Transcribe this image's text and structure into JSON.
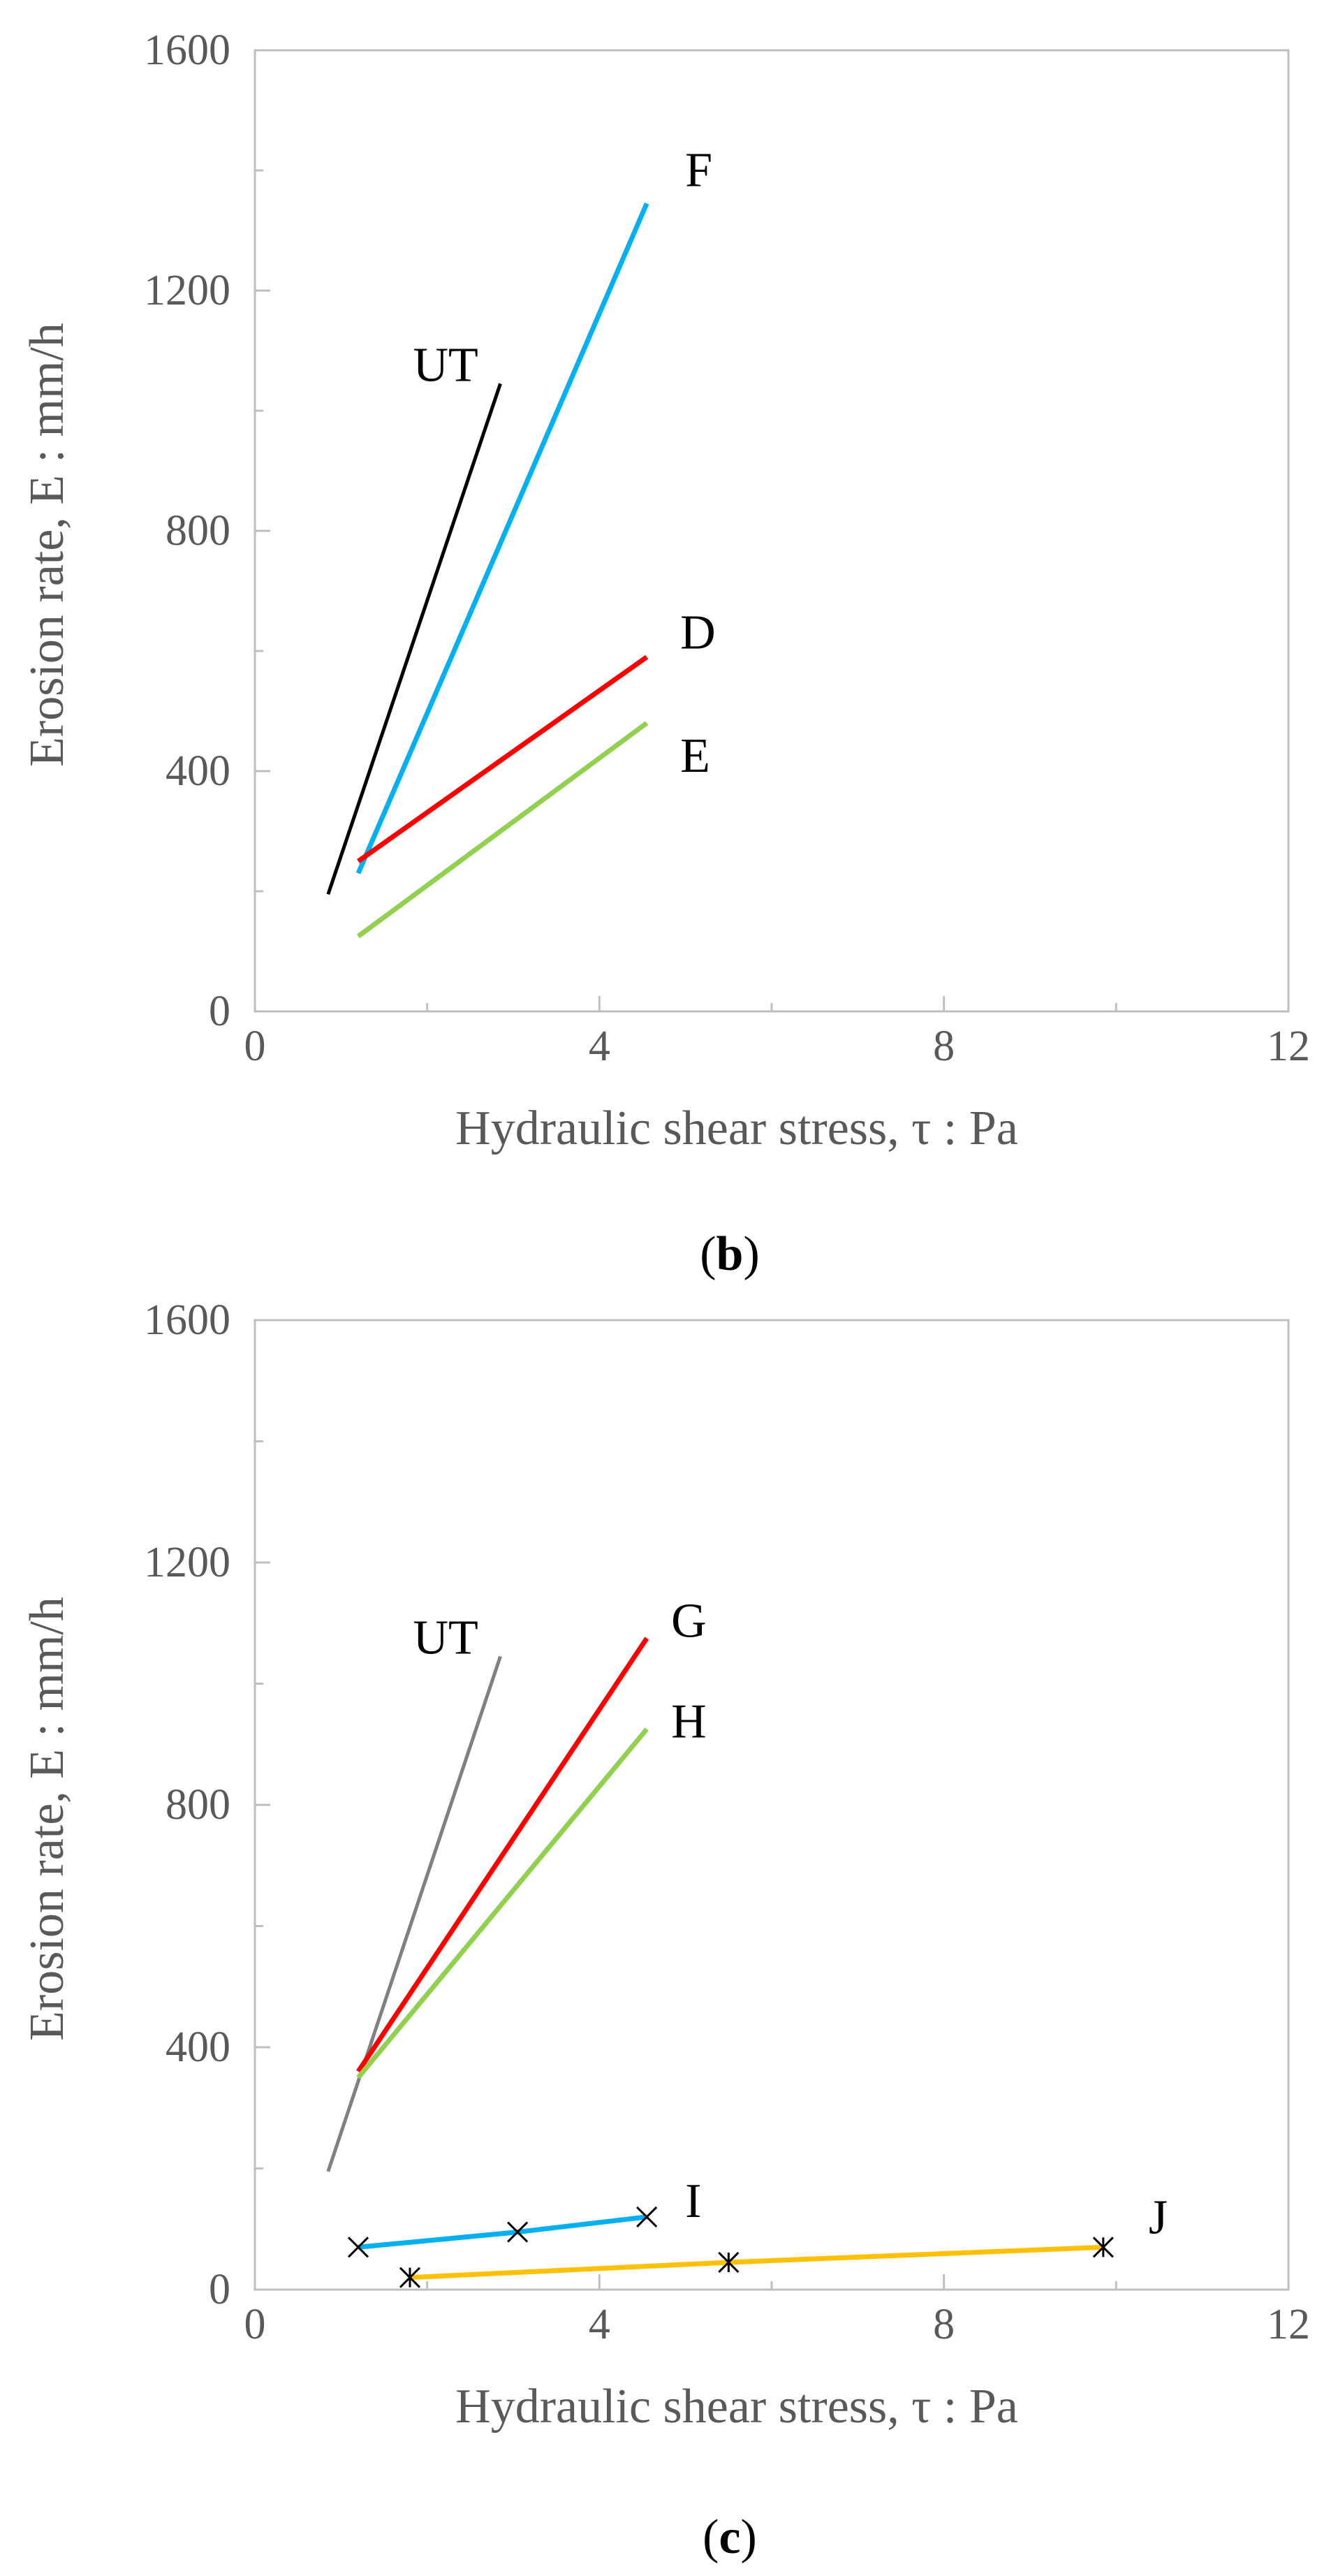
{
  "chart_data": [
    {
      "type": "line",
      "panel_label": "b",
      "xlabel": "Hydraulic shear stress, τ : Pa",
      "ylabel": "Erosion rate, E : mm/h",
      "xlim": [
        0,
        12
      ],
      "ylim": [
        0,
        1600
      ],
      "xticks": [
        0,
        4,
        8,
        12
      ],
      "yticks": [
        0,
        400,
        800,
        1200,
        1600
      ],
      "x_minor_step": 2,
      "y_minor_step": 200,
      "grid": false,
      "series": [
        {
          "name": "UT",
          "color": "#000000",
          "x": [
            0.85,
            2.85
          ],
          "y": [
            195,
            1045
          ],
          "markers": false
        },
        {
          "name": "F",
          "color": "#00b0f0",
          "x": [
            1.2,
            4.55
          ],
          "y": [
            230,
            1345
          ],
          "markers": false
        },
        {
          "name": "D",
          "color": "#ff0000",
          "x": [
            1.2,
            4.55
          ],
          "y": [
            250,
            590
          ],
          "markers": false
        },
        {
          "name": "E",
          "color": "#92d050",
          "x": [
            1.2,
            4.55
          ],
          "y": [
            125,
            480
          ],
          "markers": false
        }
      ]
    },
    {
      "type": "line",
      "panel_label": "c",
      "xlabel": "Hydraulic shear stress, τ : Pa",
      "ylabel": "Erosion rate, E : mm/h",
      "xlim": [
        0,
        12
      ],
      "ylim": [
        0,
        1600
      ],
      "xticks": [
        0,
        4,
        8,
        12
      ],
      "yticks": [
        0,
        400,
        800,
        1200,
        1600
      ],
      "x_minor_step": 2,
      "y_minor_step": 200,
      "grid": false,
      "series": [
        {
          "name": "UT",
          "color": "#808080",
          "x": [
            0.85,
            2.85
          ],
          "y": [
            195,
            1045
          ],
          "markers": false
        },
        {
          "name": "G",
          "color": "#ff0000",
          "x": [
            1.2,
            4.55
          ],
          "y": [
            360,
            1075
          ],
          "markers": false
        },
        {
          "name": "H",
          "color": "#92d050",
          "x": [
            1.2,
            4.55
          ],
          "y": [
            350,
            925
          ],
          "markers": false
        },
        {
          "name": "I",
          "color": "#00b0f0",
          "x": [
            1.2,
            3.05,
            4.55
          ],
          "y": [
            70,
            95,
            120
          ],
          "markers": true
        },
        {
          "name": "J",
          "color": "#ffc000",
          "x": [
            1.8,
            5.5,
            9.85
          ],
          "y": [
            20,
            45,
            70
          ],
          "markers": true
        }
      ]
    }
  ]
}
